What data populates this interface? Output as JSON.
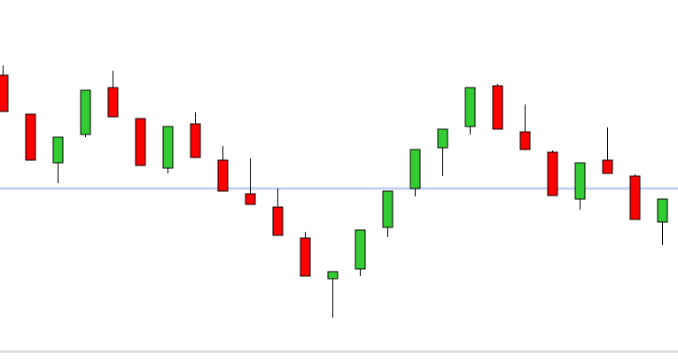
{
  "chart_data": {
    "type": "candlestick",
    "ylim": [
      0,
      397
    ],
    "up_color": "#33cc33",
    "down_color": "#ff0000",
    "level_line": 184,
    "level_color": "#c5d1f3",
    "open": [
      312,
      268,
      213,
      245,
      298,
      263,
      207,
      257,
      216,
      178,
      163,
      128,
      82,
      93,
      140,
      184,
      230,
      254,
      300,
      248,
      225,
      172,
      216,
      198,
      146
    ],
    "high": [
      323,
      268,
      242,
      295,
      317,
      263,
      254,
      270,
      232,
      218,
      184,
      135,
      90,
      137,
      181,
      228,
      251,
      298,
      302,
      279,
      227,
      213,
      253,
      200,
      172
    ],
    "low": [
      271,
      216,
      190,
      242,
      265,
      210,
      201,
      219,
      181,
      166,
      131,
      85,
      38,
      85,
      129,
      175,
      198,
      245,
      251,
      228,
      176,
      160,
      201,
      149,
      120
    ],
    "close": [
      271,
      216,
      242,
      295,
      265,
      210,
      254,
      219,
      181,
      166,
      131,
      85,
      90,
      137,
      181,
      228,
      251,
      298,
      251,
      228,
      176,
      213,
      201,
      149,
      172
    ]
  }
}
